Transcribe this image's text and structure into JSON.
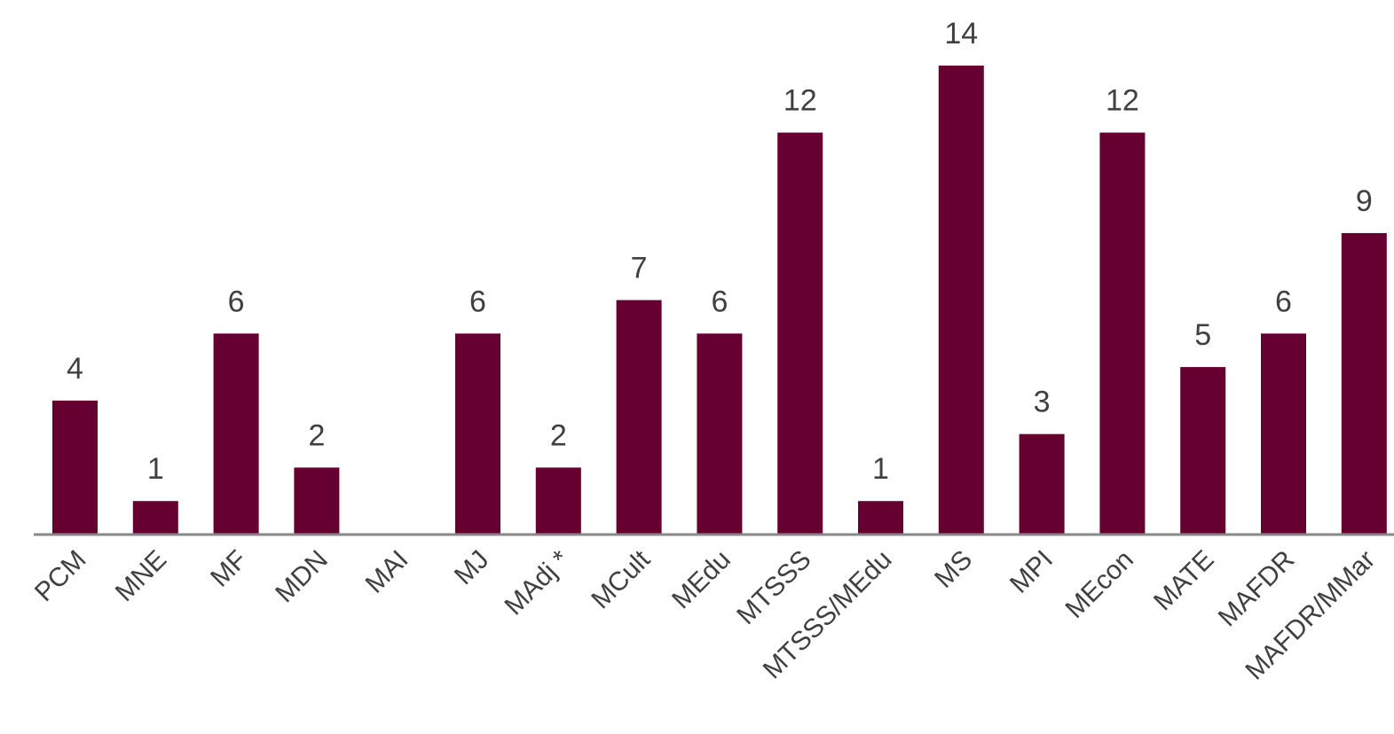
{
  "chart_data": {
    "type": "bar",
    "categories": [
      "PCM",
      "MNE",
      "MF",
      "MDN",
      "MAI",
      "MJ",
      "MAdj *",
      "MCult",
      "MEdu",
      "MTSSS",
      "MTSSS/MEdu",
      "MS",
      "MPI",
      "MEcon",
      "MATE",
      "MAFDR",
      "MAFDR/MMar"
    ],
    "values": [
      4,
      1,
      6,
      2,
      null,
      6,
      2,
      7,
      6,
      12,
      1,
      14,
      3,
      12,
      5,
      6,
      9
    ],
    "value_labels": [
      "4",
      "1",
      "6",
      "2",
      "",
      "6",
      "2",
      "7",
      "6",
      "12",
      "1",
      "14",
      "3",
      "12",
      "5",
      "6",
      "9"
    ],
    "ylim": [
      0,
      14
    ],
    "title": "",
    "xlabel": "",
    "ylabel": "",
    "grid": false,
    "legend": "none",
    "bar_color": "#650030",
    "axis_color": "#888888",
    "text_color": "#404040"
  }
}
